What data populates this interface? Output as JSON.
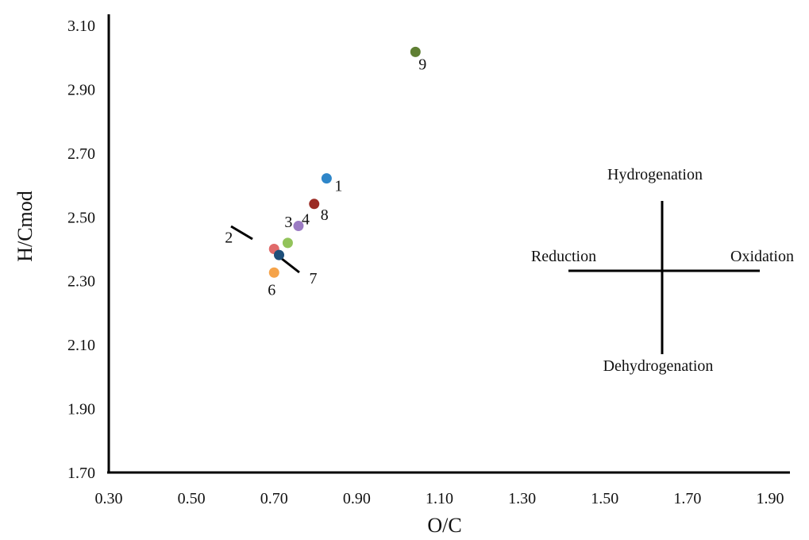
{
  "chart_data": {
    "type": "scatter",
    "title": "",
    "xlabel": "O/C",
    "ylabel": "H/Cmod",
    "xlim": [
      0.3,
      1.9
    ],
    "ylim": [
      1.7,
      3.1
    ],
    "x_ticks": [
      "0.30",
      "0.50",
      "0.70",
      "0.90",
      "1.10",
      "1.30",
      "1.50",
      "1.70",
      "1.90"
    ],
    "y_ticks": [
      "1.70",
      "1.90",
      "2.10",
      "2.30",
      "2.50",
      "2.70",
      "2.90",
      "3.10"
    ],
    "grid": false,
    "points": [
      {
        "label": "1",
        "x": 0.827,
        "y": 2.621,
        "color": "#2e86c9"
      },
      {
        "label": "2",
        "x": 0.7,
        "y": 2.4,
        "color": "#e06a6a"
      },
      {
        "label": "3",
        "x": 0.733,
        "y": 2.419,
        "color": "#92c35a"
      },
      {
        "label": "4",
        "x": 0.759,
        "y": 2.472,
        "color": "#9b7bc3"
      },
      {
        "label": "6",
        "x": 0.7,
        "y": 2.326,
        "color": "#f5a34a"
      },
      {
        "label": "7",
        "x": 0.712,
        "y": 2.381,
        "color": "#1e4f7a"
      },
      {
        "label": "8",
        "x": 0.797,
        "y": 2.541,
        "color": "#9b2b24"
      },
      {
        "label": "9",
        "x": 1.042,
        "y": 3.017,
        "color": "#5f7f33"
      }
    ],
    "annotations": {
      "hydrogenation": "Hydrogenation",
      "dehydrogenation": "Dehydrogenation",
      "reduction": "Reduction",
      "oxidation": "Oxidation"
    }
  }
}
